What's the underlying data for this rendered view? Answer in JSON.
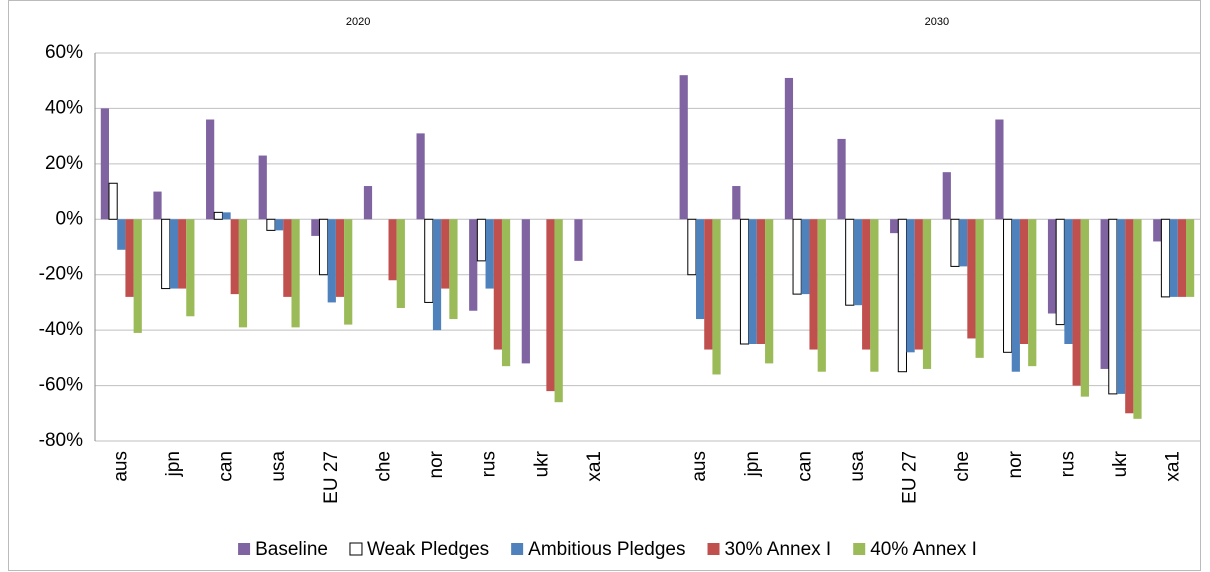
{
  "chart_data": {
    "type": "bar",
    "groups": [
      {
        "label": "2020",
        "categories": [
          "aus",
          "jpn",
          "can",
          "usa",
          "EU 27",
          "che",
          "nor",
          "rus",
          "ukr",
          "xa1"
        ]
      },
      {
        "label": "2030",
        "categories": [
          "aus",
          "jpn",
          "can",
          "usa",
          "EU 27",
          "che",
          "nor",
          "rus",
          "ukr",
          "xa1"
        ]
      }
    ],
    "series": [
      {
        "name": "Baseline",
        "color": "#8064a2",
        "values": [
          [
            40,
            10,
            36,
            23,
            -6,
            12,
            31,
            -33,
            -52,
            -15
          ],
          [
            52,
            12,
            51,
            29,
            -5,
            17,
            36,
            -34,
            -54,
            -8
          ]
        ]
      },
      {
        "name": "Weak Pledges",
        "color": "#ffffff",
        "values": [
          [
            13,
            -25,
            2.5,
            -4,
            -20,
            null,
            -30,
            -15,
            null,
            null
          ],
          [
            -20,
            -45,
            -27,
            -31,
            -55,
            -17,
            -48,
            -38,
            -63,
            -28
          ]
        ]
      },
      {
        "name": "Ambitious Pledges",
        "color": "#4f81bd",
        "values": [
          [
            -11,
            -25,
            2.5,
            -4,
            -30,
            null,
            -40,
            -25,
            null,
            null
          ],
          [
            -36,
            -45,
            -27,
            -31,
            -48,
            -17,
            -55,
            -45,
            -63,
            -28
          ]
        ]
      },
      {
        "name": "30% Annex I",
        "color": "#c0504d",
        "values": [
          [
            -28,
            -25,
            -27,
            -28,
            -28,
            -22,
            -25,
            -47,
            -62,
            null
          ],
          [
            -47,
            -45,
            -47,
            -47,
            -47,
            -43,
            -45,
            -60,
            -70,
            -28
          ]
        ]
      },
      {
        "name": "40% Annex I",
        "color": "#9bbb59",
        "values": [
          [
            -41,
            -35,
            -39,
            -39,
            -38,
            -32,
            -36,
            -53,
            -66,
            null
          ],
          [
            -56,
            -52,
            -55,
            -55,
            -54,
            -50,
            -53,
            -64,
            -72,
            -28
          ]
        ]
      }
    ],
    "ylim": [
      -80,
      60
    ],
    "yticks": [
      {
        "value": -80,
        "label": "-80%"
      },
      {
        "value": -60,
        "label": "-60%"
      },
      {
        "value": -40,
        "label": "-40%"
      },
      {
        "value": -20,
        "label": "-20%"
      },
      {
        "value": 0,
        "label": "0%"
      },
      {
        "value": 20,
        "label": "20%"
      },
      {
        "value": 40,
        "label": "40%"
      },
      {
        "value": 60,
        "label": "60%"
      }
    ],
    "grid": true
  }
}
